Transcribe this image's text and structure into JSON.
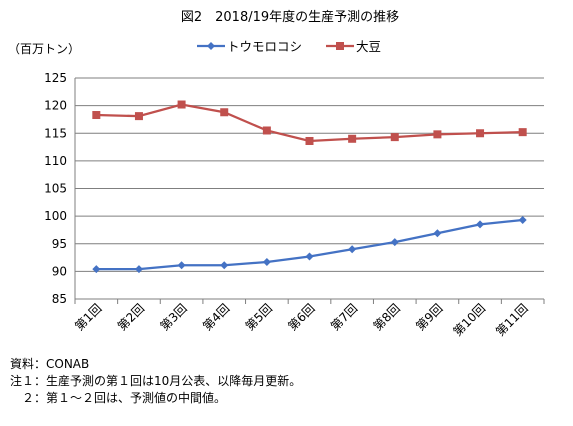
{
  "chart_data": {
    "type": "line",
    "title": "図2　2018/19年度の生産予測の推移",
    "ylabel": "（百万トン）",
    "xlabel": "",
    "ylim": [
      85,
      125
    ],
    "yticks": [
      85,
      90,
      95,
      100,
      105,
      110,
      115,
      120,
      125
    ],
    "grid": true,
    "legend_position": "top",
    "categories": [
      "第1回",
      "第2回",
      "第3回",
      "第4回",
      "第5回",
      "第6回",
      "第7回",
      "第8回",
      "第9回",
      "第10回",
      "第11回"
    ],
    "series": [
      {
        "name": "トウモロコシ",
        "color": "#4472C4",
        "marker": "diamond",
        "values": [
          90.4,
          90.4,
          91.1,
          91.1,
          91.7,
          92.7,
          94.0,
          95.3,
          96.9,
          98.5,
          99.3
        ]
      },
      {
        "name": "大豆",
        "color": "#C0504D",
        "marker": "square",
        "values": [
          118.3,
          118.1,
          120.2,
          118.8,
          115.5,
          113.6,
          114.0,
          114.3,
          114.8,
          115.0,
          115.2
        ]
      }
    ]
  },
  "notes": {
    "source": "資料：CONAB",
    "note1": "注１：生産予測の第１回は10月公表、以降毎月更新。",
    "note2": "　２：第１～２回は、予測値の中間値。"
  }
}
